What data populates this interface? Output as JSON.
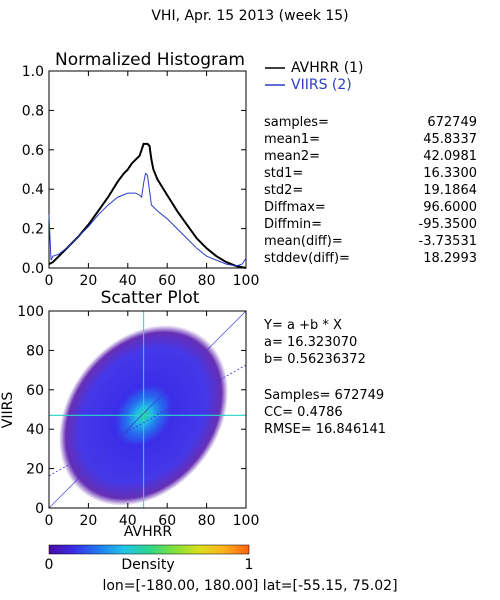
{
  "page": {
    "title": "VHI,  Apr. 15 2013 (week 15)",
    "footer": "lon=[-180.00, 180.00] lat=[-55.15, 75.02]"
  },
  "chart_data": [
    {
      "type": "line",
      "title": "Normalized Histogram",
      "xlabel": "",
      "ylabel": "",
      "xlim": [
        0,
        100
      ],
      "ylim": [
        0,
        1.0
      ],
      "x_ticks": [
        0,
        20,
        40,
        60,
        80,
        100
      ],
      "y_ticks": [
        0.0,
        0.2,
        0.4,
        0.6,
        0.8,
        1.0
      ],
      "y_tick_labels": [
        "0.0",
        "0.2",
        "0.4",
        "0.6",
        "0.8",
        "1.0"
      ],
      "legend_position": "outside-right-top",
      "series": [
        {
          "name": "AVHRR (1)",
          "color": "#000000",
          "x": [
            0,
            2,
            5,
            10,
            15,
            20,
            25,
            30,
            35,
            38,
            40,
            42,
            44,
            46,
            47,
            48,
            49,
            50,
            51,
            52,
            53,
            55,
            60,
            65,
            70,
            75,
            80,
            85,
            90,
            95,
            100
          ],
          "values": [
            0.02,
            0.03,
            0.06,
            0.11,
            0.16,
            0.22,
            0.29,
            0.36,
            0.44,
            0.48,
            0.5,
            0.53,
            0.55,
            0.57,
            0.6,
            0.63,
            0.63,
            0.63,
            0.62,
            0.55,
            0.5,
            0.45,
            0.37,
            0.29,
            0.22,
            0.15,
            0.1,
            0.06,
            0.03,
            0.01,
            0.0
          ]
        },
        {
          "name": "VIIRS (2)",
          "color": "#2a3ec8",
          "x": [
            0,
            1,
            2,
            5,
            10,
            15,
            20,
            25,
            30,
            35,
            40,
            44,
            46,
            47,
            48,
            49,
            50,
            52,
            55,
            60,
            65,
            70,
            75,
            80,
            85,
            90,
            95,
            98,
            100
          ],
          "values": [
            0.27,
            0.04,
            0.06,
            0.07,
            0.11,
            0.16,
            0.21,
            0.27,
            0.32,
            0.36,
            0.38,
            0.38,
            0.37,
            0.36,
            0.43,
            0.48,
            0.47,
            0.32,
            0.29,
            0.25,
            0.2,
            0.15,
            0.1,
            0.06,
            0.04,
            0.02,
            0.01,
            0.02,
            0.05
          ]
        }
      ],
      "stats": [
        {
          "label": "samples=",
          "value": "672749"
        },
        {
          "label": "mean1=",
          "value": "45.8337"
        },
        {
          "label": "mean2=",
          "value": "42.0981"
        },
        {
          "label": "std1=",
          "value": "16.3300"
        },
        {
          "label": "std2=",
          "value": "19.1864"
        },
        {
          "label": "Diffmax=",
          "value": "96.6000"
        },
        {
          "label": "Diffmin=",
          "value": "-95.3500"
        },
        {
          "label": "mean(diff)=",
          "value": "-3.73531"
        },
        {
          "label": "stddev(diff)=",
          "value": "18.2993"
        }
      ]
    },
    {
      "type": "heatmap",
      "title": "Scatter Plot",
      "xlabel": "AVHRR",
      "ylabel": "VIIRS",
      "xlim": [
        0,
        100
      ],
      "ylim": [
        0,
        100
      ],
      "x_ticks": [
        0,
        20,
        40,
        60,
        80,
        100
      ],
      "y_ticks": [
        0,
        20,
        40,
        60,
        80,
        100
      ],
      "density_center": [
        48,
        47
      ],
      "reference_line": "y = x",
      "regression": {
        "a": 16.32307,
        "b": 0.56236372
      },
      "fit_text": {
        "equation": "Y= a +b * X",
        "a": "a= 16.323070",
        "b": "b= 0.56236372",
        "samples": "Samples= 672749",
        "cc": "CC=  0.4786",
        "rmse": "RMSE= 16.846141"
      },
      "colorbar": {
        "label": "Density",
        "min_label": "0",
        "max_label": "1",
        "colors": [
          "#4b0aa8",
          "#3b2ee8",
          "#1f7cf0",
          "#22c3e8",
          "#2bd68c",
          "#7fe03a",
          "#d9e01c",
          "#ffb11c",
          "#ff6010"
        ]
      }
    }
  ]
}
